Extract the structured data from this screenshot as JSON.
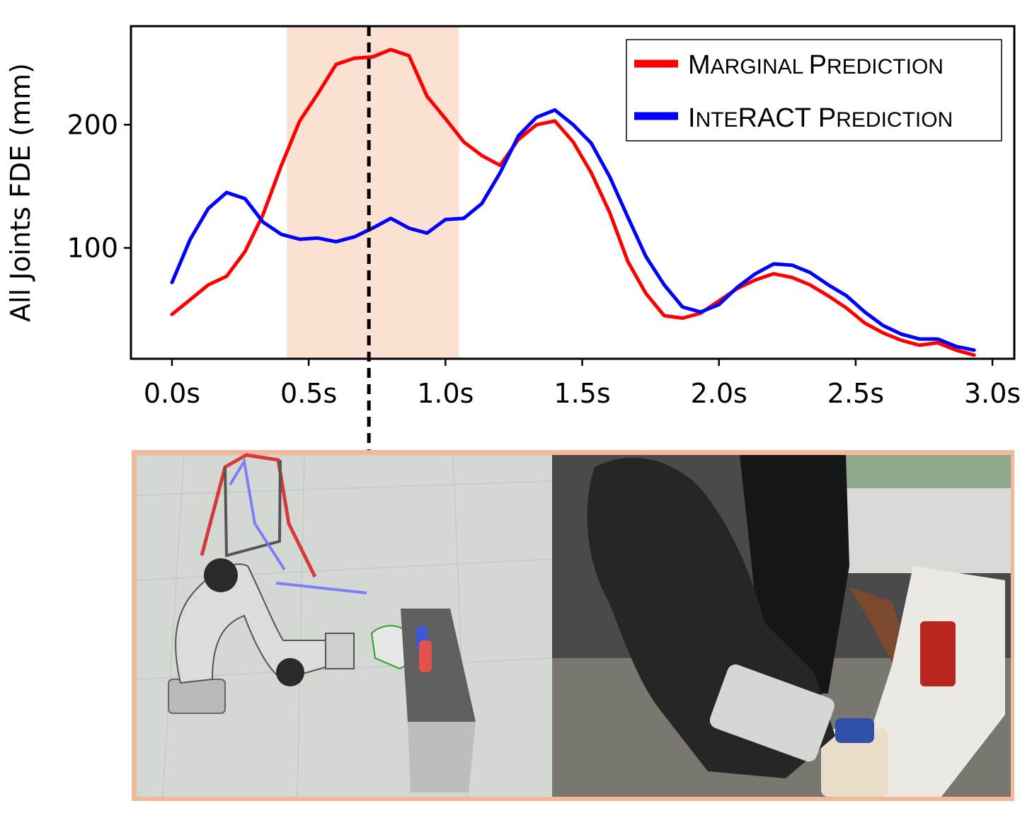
{
  "chart_data": {
    "type": "line",
    "xlabel": "",
    "ylabel": "All Joints FDE (mm)",
    "xlim": [
      -0.15,
      3.08
    ],
    "ylim": [
      10,
      280
    ],
    "x_ticks": [
      "0.0s",
      "0.5s",
      "1.0s",
      "1.5s",
      "2.0s",
      "2.5s",
      "3.0s"
    ],
    "x_tick_values": [
      0.0,
      0.5,
      1.0,
      1.5,
      2.0,
      2.5,
      3.0
    ],
    "y_ticks": [
      "100",
      "200"
    ],
    "y_tick_values": [
      100,
      200
    ],
    "grid": false,
    "legend_position": "top-right",
    "highlight_band": {
      "x_start": 0.42,
      "x_end": 1.05,
      "color": "#fbe1d2"
    },
    "current_time_marker": {
      "x": 0.72,
      "style": "dashed",
      "color": "#000000"
    },
    "x": [
      0.0,
      0.067,
      0.133,
      0.2,
      0.267,
      0.333,
      0.4,
      0.467,
      0.533,
      0.6,
      0.667,
      0.733,
      0.8,
      0.867,
      0.933,
      1.0,
      1.067,
      1.133,
      1.2,
      1.267,
      1.333,
      1.4,
      1.467,
      1.533,
      1.6,
      1.667,
      1.733,
      1.8,
      1.867,
      1.933,
      2.0,
      2.067,
      2.133,
      2.2,
      2.267,
      2.333,
      2.4,
      2.467,
      2.533,
      2.6,
      2.667,
      2.733,
      2.8,
      2.867,
      2.933
    ],
    "series": [
      {
        "name": "Marginal Prediction",
        "color": "#ff0000",
        "values": [
          46,
          58,
          70,
          77,
          97,
          127,
          167,
          203,
          225,
          249,
          254,
          255,
          261,
          256,
          223,
          205,
          186,
          175,
          167,
          188,
          200,
          203,
          186,
          161,
          129,
          89,
          63,
          45,
          43,
          47,
          57,
          67,
          74,
          79,
          76,
          70,
          61,
          51,
          39,
          31,
          25,
          21,
          23,
          17,
          13
        ]
      },
      {
        "name": "InteRACT Prediction",
        "color": "#0000ff",
        "values": [
          72,
          107,
          132,
          145,
          140,
          121,
          111,
          107,
          108,
          105,
          109,
          116,
          124,
          116,
          112,
          123,
          124,
          136,
          161,
          191,
          206,
          212,
          200,
          185,
          158,
          125,
          93,
          70,
          52,
          48,
          54,
          68,
          79,
          87,
          86,
          80,
          70,
          61,
          48,
          37,
          30,
          26,
          26,
          20,
          17
        ]
      }
    ]
  },
  "legend": {
    "marginal": {
      "big1": "M",
      "small1": "ARGINAL ",
      "big2": "P",
      "small2": "REDICTION"
    },
    "interact": {
      "big1": "I",
      "small1": "NTE",
      "big2": "RACT P",
      "small2": "REDICTION"
    }
  },
  "panels": {
    "frame_color": "#f2b89b",
    "sim_floor_color": "#d3d8d2",
    "photo_bg_color": "#4a4a4a"
  }
}
